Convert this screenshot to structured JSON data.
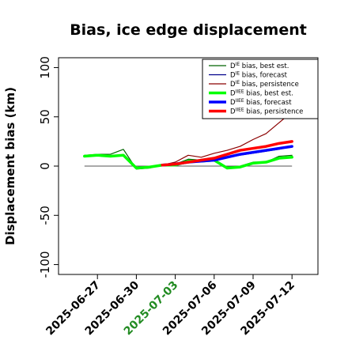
{
  "chart_data": {
    "type": "line",
    "title": "Bias, ice edge displacement",
    "xlabel": "",
    "ylabel": "Displacement bias (km)",
    "ylim": [
      -110,
      110
    ],
    "yticks": [
      -100,
      -50,
      0,
      50,
      100
    ],
    "xticks": [
      {
        "label": "2025-06-27",
        "date": "2025-06-27",
        "color": "#000000"
      },
      {
        "label": "2025-06-30",
        "date": "2025-06-30",
        "color": "#000000"
      },
      {
        "label": "2025-07-03",
        "date": "2025-07-03",
        "color": "#228B22"
      },
      {
        "label": "2025-07-06",
        "date": "2025-07-06",
        "color": "#000000"
      },
      {
        "label": "2025-07-09",
        "date": "2025-07-09",
        "color": "#000000"
      },
      {
        "label": "2025-07-12",
        "date": "2025-07-12",
        "color": "#000000"
      }
    ],
    "xlim": [
      "2025-06-24",
      "2025-07-14"
    ],
    "zero_line": true,
    "legend_position": "top-right",
    "series": [
      {
        "name": "D^IE bias, best est.",
        "color": "#006400",
        "width": 1.2,
        "points": [
          [
            "2025-06-26",
            11
          ],
          [
            "2025-06-27",
            12
          ],
          [
            "2025-06-28",
            12
          ],
          [
            "2025-06-29",
            17
          ],
          [
            "2025-06-30",
            -3
          ],
          [
            "2025-07-01",
            -2
          ],
          [
            "2025-07-02",
            1
          ],
          [
            "2025-07-03",
            2
          ],
          [
            "2025-07-04",
            7
          ],
          [
            "2025-07-05",
            6
          ],
          [
            "2025-07-06",
            6
          ],
          [
            "2025-07-07",
            -1
          ],
          [
            "2025-07-08",
            0
          ],
          [
            "2025-07-09",
            4
          ],
          [
            "2025-07-10",
            4
          ],
          [
            "2025-07-11",
            10
          ],
          [
            "2025-07-12",
            11
          ]
        ]
      },
      {
        "name": "D^IE bias, forecast",
        "color": "#00008B",
        "width": 1.2,
        "points": [
          [
            "2025-07-02",
            1
          ],
          [
            "2025-07-03",
            3
          ],
          [
            "2025-07-04",
            5
          ],
          [
            "2025-07-05",
            6
          ],
          [
            "2025-07-06",
            7
          ],
          [
            "2025-07-07",
            9
          ],
          [
            "2025-07-08",
            11
          ],
          [
            "2025-07-09",
            13
          ],
          [
            "2025-07-10",
            15
          ],
          [
            "2025-07-11",
            17
          ],
          [
            "2025-07-12",
            20
          ]
        ]
      },
      {
        "name": "D^IE bias, persistence",
        "color": "#8B0000",
        "width": 1.2,
        "points": [
          [
            "2025-07-02",
            1
          ],
          [
            "2025-07-03",
            4
          ],
          [
            "2025-07-04",
            11
          ],
          [
            "2025-07-05",
            9
          ],
          [
            "2025-07-06",
            13
          ],
          [
            "2025-07-07",
            16
          ],
          [
            "2025-07-08",
            20
          ],
          [
            "2025-07-09",
            27
          ],
          [
            "2025-07-10",
            33
          ],
          [
            "2025-07-11",
            44
          ],
          [
            "2025-07-12",
            55
          ]
        ]
      },
      {
        "name": "D^IIEE bias, best est.",
        "color": "#00FF00",
        "width": 3.5,
        "points": [
          [
            "2025-06-26",
            10
          ],
          [
            "2025-06-27",
            11
          ],
          [
            "2025-06-28",
            10
          ],
          [
            "2025-06-29",
            11
          ],
          [
            "2025-06-30",
            -2
          ],
          [
            "2025-07-01",
            -1
          ],
          [
            "2025-07-02",
            1
          ],
          [
            "2025-07-03",
            1
          ],
          [
            "2025-07-04",
            5
          ],
          [
            "2025-07-05",
            5
          ],
          [
            "2025-07-06",
            6
          ],
          [
            "2025-07-07",
            -2
          ],
          [
            "2025-07-08",
            -1
          ],
          [
            "2025-07-09",
            3
          ],
          [
            "2025-07-10",
            4
          ],
          [
            "2025-07-11",
            8
          ],
          [
            "2025-07-12",
            9
          ]
        ]
      },
      {
        "name": "D^IIEE bias, forecast",
        "color": "#0000FF",
        "width": 3.5,
        "points": [
          [
            "2025-07-02",
            1
          ],
          [
            "2025-07-03",
            2
          ],
          [
            "2025-07-04",
            4
          ],
          [
            "2025-07-05",
            5
          ],
          [
            "2025-07-06",
            6
          ],
          [
            "2025-07-07",
            9
          ],
          [
            "2025-07-08",
            12
          ],
          [
            "2025-07-09",
            14
          ],
          [
            "2025-07-10",
            16
          ],
          [
            "2025-07-11",
            18
          ],
          [
            "2025-07-12",
            20
          ]
        ]
      },
      {
        "name": "D^IIEE bias, persistence",
        "color": "#FF0000",
        "width": 3.5,
        "points": [
          [
            "2025-07-02",
            1
          ],
          [
            "2025-07-03",
            2
          ],
          [
            "2025-07-04",
            4
          ],
          [
            "2025-07-05",
            6
          ],
          [
            "2025-07-06",
            8
          ],
          [
            "2025-07-07",
            12
          ],
          [
            "2025-07-08",
            16
          ],
          [
            "2025-07-09",
            18
          ],
          [
            "2025-07-10",
            20
          ],
          [
            "2025-07-11",
            23
          ],
          [
            "2025-07-12",
            25
          ]
        ]
      }
    ],
    "legend": [
      {
        "base": "D",
        "sup": "IE",
        "text": " bias, best est.",
        "color": "#006400",
        "width": 1.2
      },
      {
        "base": "D",
        "sup": "IE",
        "text": " bias, forecast",
        "color": "#00008B",
        "width": 1.2
      },
      {
        "base": "D",
        "sup": "IE",
        "text": " bias, persistence",
        "color": "#8B0000",
        "width": 1.2
      },
      {
        "base": "D",
        "sup": "IIEE",
        "text": " bias, best est.",
        "color": "#00FF00",
        "width": 3.5
      },
      {
        "base": "D",
        "sup": "IIEE",
        "text": " bias, forecast",
        "color": "#0000FF",
        "width": 3.5
      },
      {
        "base": "D",
        "sup": "IIEE",
        "text": " bias, persistence",
        "color": "#FF0000",
        "width": 3.5
      }
    ]
  }
}
